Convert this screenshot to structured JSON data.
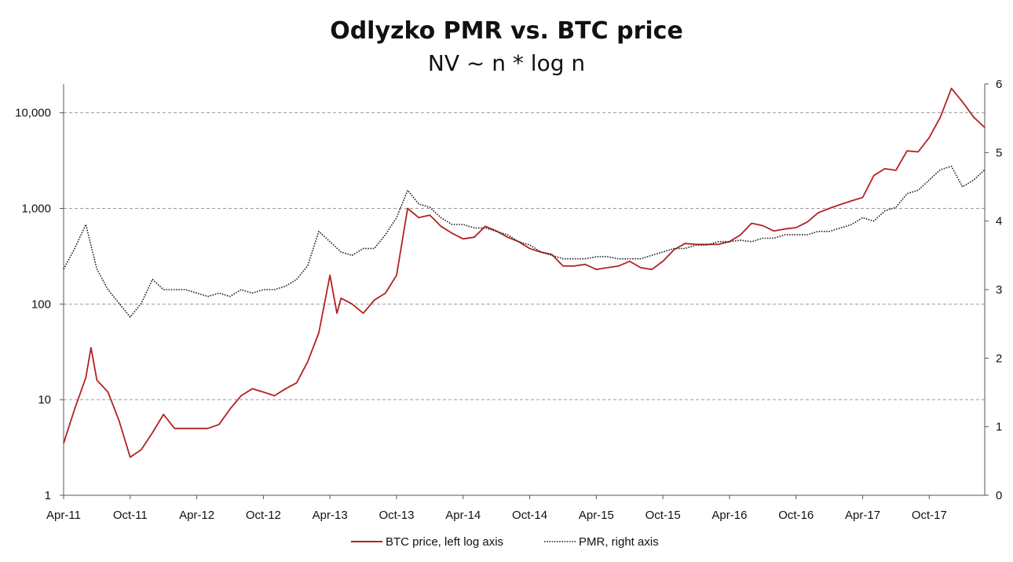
{
  "title": "Odlyzko PMR vs. BTC price",
  "subtitle": "NV ~ n * log n",
  "colors": {
    "btc": "#b22222",
    "pmr": "#222222",
    "grid": "#999999",
    "axis": "#555555"
  },
  "chart_data": {
    "type": "line",
    "title": "Odlyzko PMR vs. BTC price",
    "subtitle": "NV ~ n * log n",
    "x_tick_labels": [
      "Apr-11",
      "Oct-11",
      "Apr-12",
      "Oct-12",
      "Apr-13",
      "Oct-13",
      "Apr-14",
      "Oct-14",
      "Apr-15",
      "Oct-15",
      "Apr-16",
      "Oct-16",
      "Apr-17",
      "Oct-17"
    ],
    "x_range": [
      "2011-04",
      "2018-03"
    ],
    "y_left": {
      "scale": "log",
      "range": [
        1,
        20000
      ],
      "tick_values": [
        1,
        10,
        100,
        1000,
        10000
      ],
      "tick_labels": [
        "1",
        "10",
        "100",
        "1,000",
        "10,000"
      ]
    },
    "y_right": {
      "scale": "linear",
      "range": [
        0,
        6
      ],
      "tick_values": [
        0,
        1,
        2,
        3,
        4,
        5,
        6
      ],
      "tick_labels": [
        "0",
        "1",
        "2",
        "3",
        "4",
        "5",
        "6"
      ]
    },
    "grid": "horizontal dashed at left-axis decades",
    "legend": "bottom-center",
    "series": [
      {
        "name": "BTC price, left log axis",
        "axis": "left",
        "style": "solid",
        "color": "#b22222",
        "x": [
          "2011-04",
          "2011-05",
          "2011-06",
          "2011-06-15",
          "2011-07",
          "2011-08",
          "2011-09",
          "2011-10",
          "2011-11",
          "2011-12",
          "2012-01",
          "2012-02",
          "2012-03",
          "2012-04",
          "2012-05",
          "2012-06",
          "2012-07",
          "2012-08",
          "2012-09",
          "2012-10",
          "2012-11",
          "2012-12",
          "2013-01",
          "2013-02",
          "2013-03",
          "2013-04",
          "2013-04-20",
          "2013-05",
          "2013-06",
          "2013-07",
          "2013-08",
          "2013-09",
          "2013-10",
          "2013-11",
          "2013-12",
          "2014-01",
          "2014-02",
          "2014-03",
          "2014-04",
          "2014-05",
          "2014-06",
          "2014-07",
          "2014-08",
          "2014-09",
          "2014-10",
          "2014-11",
          "2014-12",
          "2015-01",
          "2015-02",
          "2015-03",
          "2015-04",
          "2015-05",
          "2015-06",
          "2015-07",
          "2015-08",
          "2015-09",
          "2015-10",
          "2015-11",
          "2015-12",
          "2016-01",
          "2016-02",
          "2016-03",
          "2016-04",
          "2016-05",
          "2016-06",
          "2016-07",
          "2016-08",
          "2016-09",
          "2016-10",
          "2016-11",
          "2016-12",
          "2017-01",
          "2017-02",
          "2017-03",
          "2017-04",
          "2017-05",
          "2017-06",
          "2017-07",
          "2017-08",
          "2017-09",
          "2017-10",
          "2017-11",
          "2017-12",
          "2018-01",
          "2018-02",
          "2018-03"
        ],
        "values": [
          3.5,
          8,
          17,
          35,
          16,
          12,
          6,
          2.5,
          3,
          4.5,
          7,
          5,
          5,
          5,
          5,
          5.5,
          8,
          11,
          13,
          12,
          11,
          13,
          15,
          25,
          50,
          200,
          80,
          115,
          100,
          80,
          110,
          130,
          200,
          1000,
          800,
          850,
          650,
          550,
          480,
          500,
          650,
          580,
          500,
          450,
          380,
          350,
          330,
          250,
          250,
          260,
          230,
          240,
          250,
          280,
          240,
          230,
          280,
          370,
          430,
          420,
          420,
          420,
          450,
          530,
          700,
          660,
          580,
          610,
          630,
          720,
          900,
          1000,
          1100,
          1200,
          1300,
          2200,
          2600,
          2500,
          4000,
          3900,
          5500,
          9000,
          18000,
          13000,
          9000,
          7000
        ]
      },
      {
        "name": "PMR, right axis",
        "axis": "right",
        "style": "dotted",
        "color": "#222222",
        "x": [
          "2011-04",
          "2011-05",
          "2011-06",
          "2011-07",
          "2011-08",
          "2011-09",
          "2011-10",
          "2011-11",
          "2011-12",
          "2012-01",
          "2012-02",
          "2012-03",
          "2012-04",
          "2012-05",
          "2012-06",
          "2012-07",
          "2012-08",
          "2012-09",
          "2012-10",
          "2012-11",
          "2012-12",
          "2013-01",
          "2013-02",
          "2013-03",
          "2013-04",
          "2013-05",
          "2013-06",
          "2013-07",
          "2013-08",
          "2013-09",
          "2013-10",
          "2013-11",
          "2013-12",
          "2014-01",
          "2014-02",
          "2014-03",
          "2014-04",
          "2014-05",
          "2014-06",
          "2014-07",
          "2014-08",
          "2014-09",
          "2014-10",
          "2014-11",
          "2014-12",
          "2015-01",
          "2015-02",
          "2015-03",
          "2015-04",
          "2015-05",
          "2015-06",
          "2015-07",
          "2015-08",
          "2015-09",
          "2015-10",
          "2015-11",
          "2015-12",
          "2016-01",
          "2016-02",
          "2016-03",
          "2016-04",
          "2016-05",
          "2016-06",
          "2016-07",
          "2016-08",
          "2016-09",
          "2016-10",
          "2016-11",
          "2016-12",
          "2017-01",
          "2017-02",
          "2017-03",
          "2017-04",
          "2017-05",
          "2017-06",
          "2017-07",
          "2017-08",
          "2017-09",
          "2017-10",
          "2017-11",
          "2017-12",
          "2018-01",
          "2018-02",
          "2018-03"
        ],
        "values": [
          3.3,
          3.6,
          3.95,
          3.3,
          3.0,
          2.8,
          2.6,
          2.8,
          3.15,
          3.0,
          3.0,
          3.0,
          2.95,
          2.9,
          2.95,
          2.9,
          3.0,
          2.95,
          3.0,
          3.0,
          3.05,
          3.15,
          3.35,
          3.85,
          3.7,
          3.55,
          3.5,
          3.6,
          3.6,
          3.8,
          4.05,
          4.45,
          4.25,
          4.2,
          4.05,
          3.95,
          3.95,
          3.9,
          3.9,
          3.85,
          3.8,
          3.7,
          3.65,
          3.55,
          3.5,
          3.45,
          3.45,
          3.45,
          3.48,
          3.48,
          3.45,
          3.45,
          3.45,
          3.5,
          3.55,
          3.6,
          3.6,
          3.65,
          3.65,
          3.7,
          3.7,
          3.72,
          3.7,
          3.75,
          3.75,
          3.8,
          3.8,
          3.8,
          3.85,
          3.85,
          3.9,
          3.95,
          4.05,
          4.0,
          4.15,
          4.2,
          4.4,
          4.45,
          4.6,
          4.75,
          4.8,
          4.5,
          4.6,
          4.75
        ]
      }
    ]
  }
}
